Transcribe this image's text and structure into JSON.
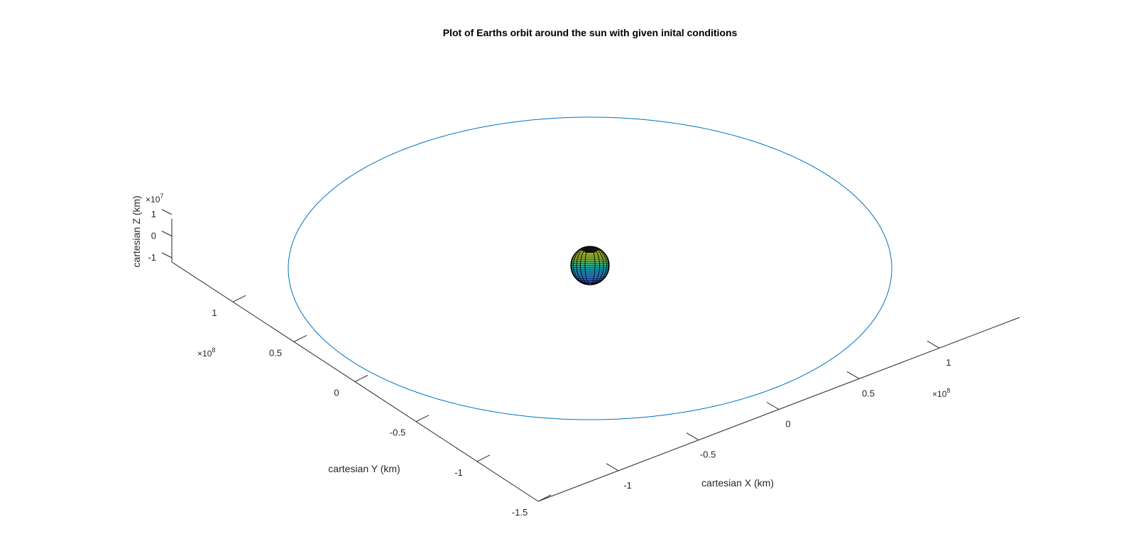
{
  "chart_data": {
    "type": "line3d",
    "title": "Plot of Earths orbit around the sun with given inital conditions",
    "xlabel": "cartesian X (km)",
    "ylabel": "cartesian Y (km)",
    "zlabel": "cartesian Z (km)",
    "x_ticks": [
      "-1",
      "-0.5",
      "0",
      "0.5",
      "1"
    ],
    "y_ticks": [
      "-1.5",
      "-1",
      "-0.5",
      "0",
      "0.5",
      "1"
    ],
    "z_ticks": [
      "-1",
      "0",
      "1"
    ],
    "x_exponent": "10",
    "x_exponent_power": "8",
    "y_exponent": "10",
    "y_exponent_power": "8",
    "z_exponent": "10",
    "z_exponent_power": "7",
    "exponent_prefix": "×",
    "xlim": [
      -150000000.0,
      150000000.0
    ],
    "ylim": [
      -150000000.0,
      150000000.0
    ],
    "zlim": [
      -10000000.0,
      10000000.0
    ],
    "grid": false,
    "series": [
      {
        "name": "",
        "color": "#0072BD",
        "orbit": {
          "center": [
            0,
            0,
            0
          ],
          "radius": 149600000.0
        }
      }
    ],
    "sun": {
      "center": [
        0,
        0,
        0
      ],
      "colormap": "parula",
      "edge_color": "#000000"
    }
  },
  "colors": {
    "orbit": "#0072BD",
    "axis": "#262626"
  }
}
